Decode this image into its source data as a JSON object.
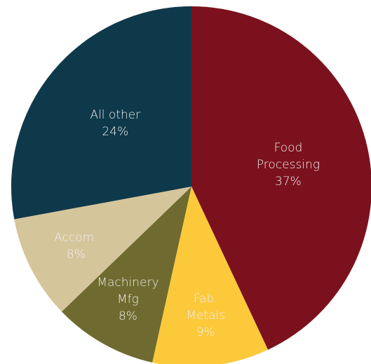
{
  "chart_data": {
    "type": "pie",
    "categories": [
      "Food Processing",
      "Fab. Metals",
      "Machinery Mfg",
      "Accom.",
      "All other"
    ],
    "values": [
      37,
      9,
      8,
      8,
      24
    ],
    "value_labels": [
      "37%",
      "9%",
      "8%",
      "8%",
      "24%"
    ],
    "colors": [
      "#7b111c",
      "#fcc93b",
      "#6f6a2f",
      "#d5c59b",
      "#0e394a"
    ]
  }
}
